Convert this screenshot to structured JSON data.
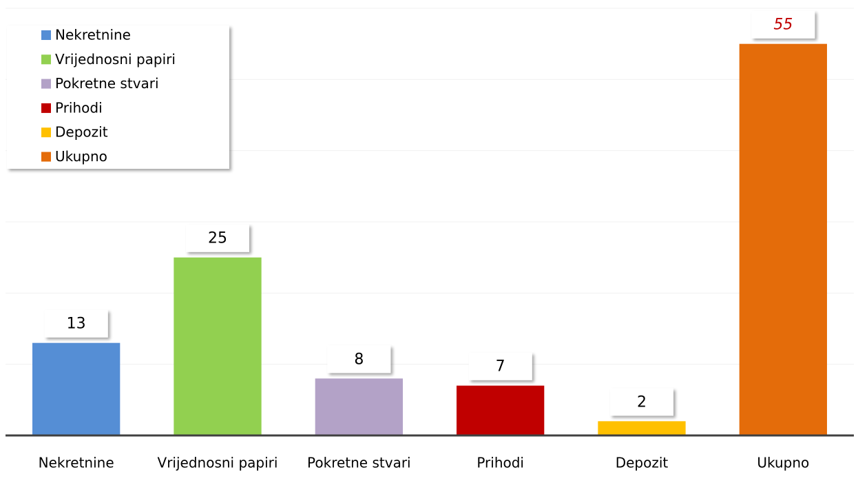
{
  "chart_data": {
    "type": "bar",
    "categories": [
      "Nekretnine",
      "Vrijednosni papiri",
      "Pokretne stvari",
      "Prihodi",
      "Depozit",
      "Ukupno"
    ],
    "values": [
      13,
      25,
      8,
      7,
      2,
      55
    ],
    "colors": [
      "#558ed5",
      "#92d050",
      "#b3a2c7",
      "#c00000",
      "#ffc000",
      "#e46c0a"
    ],
    "ylim": [
      0,
      60
    ],
    "yticks": [
      0,
      10,
      20,
      30,
      40,
      50,
      60
    ],
    "grid": true,
    "legend": "upper left"
  }
}
